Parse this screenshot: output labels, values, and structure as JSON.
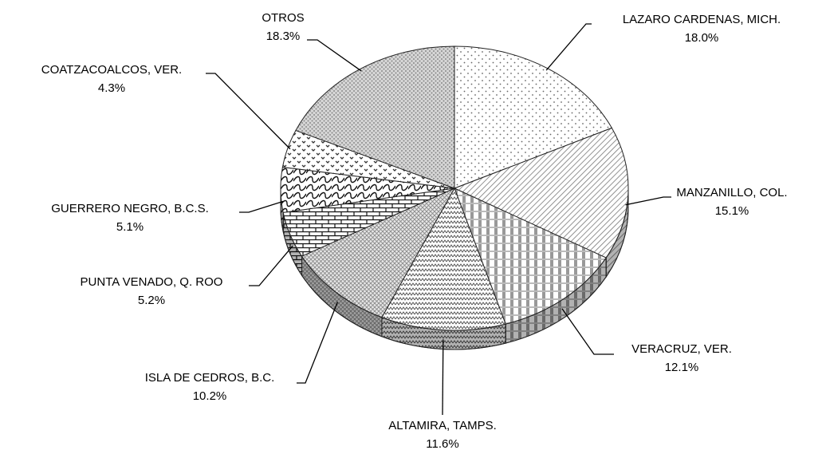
{
  "chart_data": {
    "type": "pie",
    "categories": [
      "LAZARO CARDENAS, MICH.",
      "MANZANILLO, COL.",
      "VERACRUZ, VER.",
      "ALTAMIRA, TAMPS.",
      "ISLA DE CEDROS, B.C.",
      "PUNTA VENADO, Q. ROO",
      "GUERRERO NEGRO, B.C.S.",
      "COATZACOALCOS, VER.",
      "OTROS"
    ],
    "values": [
      18.0,
      15.1,
      12.1,
      11.6,
      10.2,
      5.2,
      5.1,
      4.3,
      18.3
    ],
    "value_labels": [
      "18.0%",
      "15.1%",
      "12.1%",
      "11.6%",
      "10.2%",
      "5.2%",
      "5.1%",
      "4.3%",
      "18.3%"
    ]
  }
}
